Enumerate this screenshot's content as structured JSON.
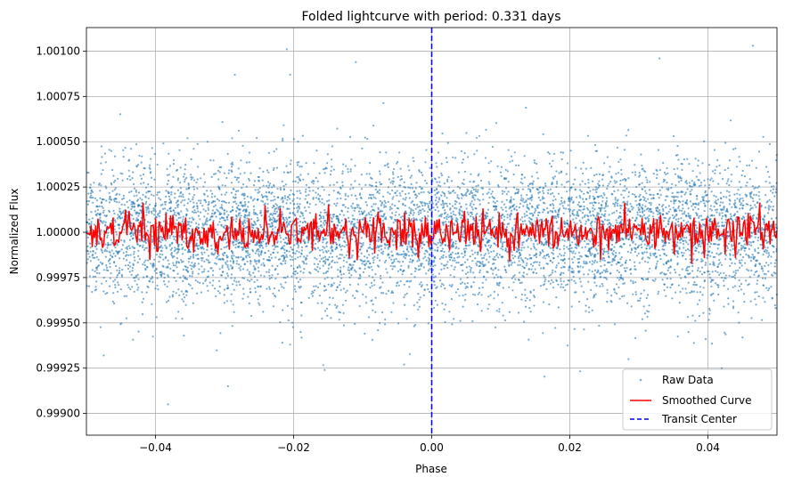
{
  "chart_data": {
    "type": "scatter",
    "title": "Folded lightcurve with period: 0.331 days",
    "xlabel": "Phase",
    "ylabel": "Normalized Flux",
    "xlim": [
      -0.05,
      0.05
    ],
    "ylim": [
      0.99888,
      1.00113
    ],
    "x_ticks": [
      -0.04,
      -0.02,
      0.0,
      0.02,
      0.04
    ],
    "x_tick_labels": [
      "−0.04",
      "−0.02",
      "0.00",
      "0.02",
      "0.04"
    ],
    "y_ticks": [
      0.999,
      0.99925,
      0.9995,
      0.99975,
      1.0,
      1.00025,
      1.0005,
      1.00075,
      1.001
    ],
    "y_tick_labels": [
      "0.99900",
      "0.99925",
      "0.99950",
      "0.99975",
      "1.00000",
      "1.00025",
      "1.00050",
      "1.00075",
      "1.00100"
    ],
    "grid": true,
    "legend_position": "bottom-right",
    "series": [
      {
        "name": "Raw Data",
        "kind": "scatter",
        "color": "#1f77b4",
        "count": 7000,
        "center": 1.0,
        "std": 0.00019,
        "outliers": [
          [
            -0.0475,
            0.99932
          ],
          [
            -0.0382,
            0.99905
          ],
          [
            -0.0295,
            0.99915
          ],
          [
            -0.0285,
            1.00087
          ],
          [
            -0.021,
            1.00101
          ],
          [
            -0.0205,
            1.00087
          ],
          [
            -0.011,
            1.00094
          ],
          [
            -0.0155,
            0.99924
          ],
          [
            0.033,
            1.00096
          ],
          [
            0.0465,
            1.00103
          ],
          [
            0.042,
            0.99925
          ],
          [
            -0.004,
            0.99927
          ],
          [
            -0.0205,
            0.99938
          ],
          [
            0.0285,
            0.9993
          ],
          [
            0.045,
            0.99942
          ]
        ]
      },
      {
        "name": "Smoothed Curve",
        "kind": "line",
        "color": "#ff0000",
        "points": 600,
        "center": 1.0,
        "amplitude": 5e-05,
        "spikes": [
          [
            -0.0418,
            1.00016
          ],
          [
            -0.0408,
            0.99985
          ],
          [
            -0.031,
            0.99988
          ],
          [
            -0.015,
            1.00015
          ],
          [
            -0.012,
            0.99986
          ],
          [
            -0.002,
            0.99986
          ],
          [
            0.0075,
            1.00013
          ],
          [
            0.012,
            0.9999
          ],
          [
            0.0245,
            0.99985
          ],
          [
            0.028,
            1.00016
          ],
          [
            0.0425,
            0.99988
          ],
          [
            0.0475,
            1.00016
          ]
        ]
      },
      {
        "name": "Transit Center",
        "kind": "vline",
        "color": "#0000ff",
        "x": 0.0
      }
    ]
  }
}
